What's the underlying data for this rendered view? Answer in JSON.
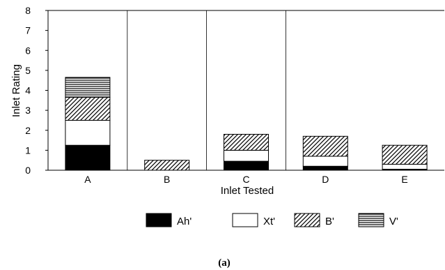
{
  "chart_data": {
    "type": "bar",
    "stacked": true,
    "categories": [
      "A",
      "B",
      "C",
      "D",
      "E"
    ],
    "series": [
      {
        "name": "Ah'",
        "values": [
          1.25,
          0.0,
          0.45,
          0.2,
          0.05
        ],
        "pattern": "solid"
      },
      {
        "name": "Xt'",
        "values": [
          1.25,
          0.0,
          0.55,
          0.5,
          0.25
        ],
        "pattern": "empty"
      },
      {
        "name": "B'",
        "values": [
          1.15,
          0.5,
          0.8,
          1.0,
          0.95
        ],
        "pattern": "diagonal"
      },
      {
        "name": "V'",
        "values": [
          1.0,
          0.0,
          0.0,
          0.0,
          0.0
        ],
        "pattern": "horizontal"
      }
    ],
    "title": "",
    "xlabel": "Inlet Tested",
    "ylabel": "Inlet Rating",
    "ylim": [
      0,
      8
    ],
    "yticks": [
      0,
      1,
      2,
      3,
      4,
      5,
      6,
      7,
      8
    ],
    "grid": false,
    "category_separators": true,
    "legend_position": "bottom",
    "caption": "(a)"
  }
}
